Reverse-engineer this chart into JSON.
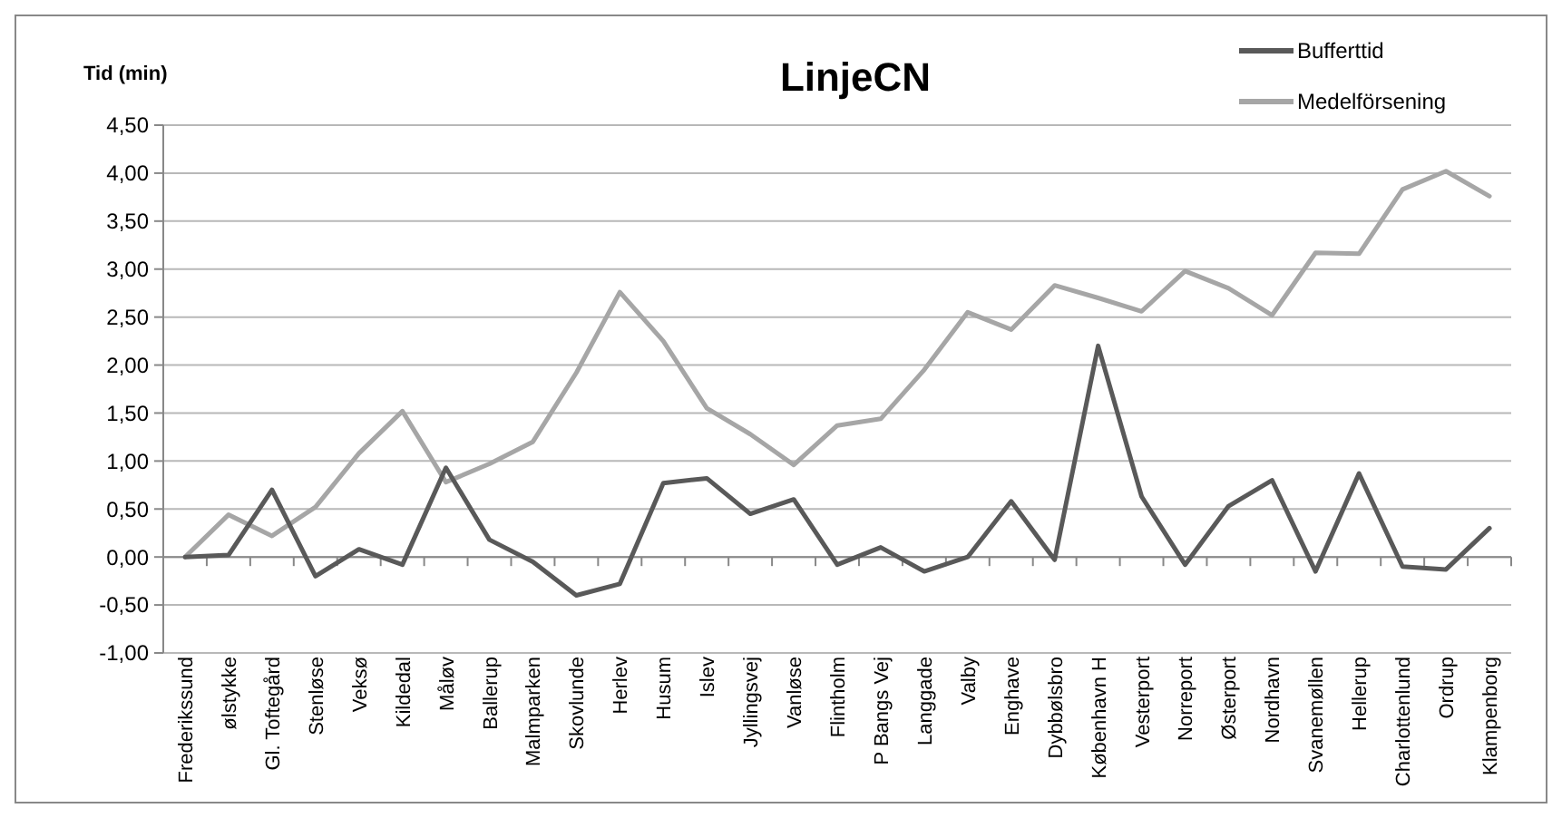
{
  "chart_data": {
    "type": "line",
    "title": "LinjeCN",
    "ylabel": "Tid (min)",
    "categories": [
      "Frederikssund",
      "ølstykke",
      "Gl. Toftegård",
      "Stenløse",
      "Veksø",
      "Kildedal",
      "Måløv",
      "Ballerup",
      "Malmparken",
      "Skovlunde",
      "Herlev",
      "Husum",
      "Islev",
      "Jyllingsvej",
      "Vanløse",
      "Flintholm",
      "P Bangs Vej",
      "Langgade",
      "Valby",
      "Enghave",
      "Dybbølsbro",
      "København H",
      "Vesterport",
      "Norreport",
      "Østerport",
      "Nordhavn",
      "Svanemøllen",
      "Hellerup",
      "Charlottenlund",
      "Ordrup",
      "Klampenborg"
    ],
    "series": [
      {
        "name": "Bufferttid",
        "color": "#595959",
        "values": [
          0,
          0.02,
          0.7,
          -0.2,
          0.08,
          -0.08,
          0.93,
          0.18,
          -0.05,
          -0.4,
          -0.28,
          0.77,
          0.82,
          0.45,
          0.6,
          -0.08,
          0.1,
          -0.15,
          0,
          0.58,
          -0.03,
          2.2,
          0.63,
          -0.08,
          0.53,
          0.8,
          -0.15,
          0.87,
          -0.1,
          -0.13,
          0.3
        ]
      },
      {
        "name": "Medelförsening",
        "color": "#a6a6a6",
        "values": [
          0,
          0.44,
          0.22,
          0.52,
          1.08,
          1.52,
          0.78,
          0.97,
          1.2,
          1.92,
          2.76,
          2.25,
          1.55,
          1.28,
          0.96,
          1.37,
          1.44,
          1.95,
          2.55,
          2.37,
          2.83,
          2.7,
          2.56,
          2.98,
          2.8,
          2.52,
          3.17,
          3.16,
          3.83,
          4.02,
          3.76
        ]
      }
    ],
    "ylim": [
      -1,
      4.5
    ],
    "yticks": [
      {
        "value": -1,
        "label": "-1,00"
      },
      {
        "value": -0.5,
        "label": "-0,50"
      },
      {
        "value": 0,
        "label": "0,00"
      },
      {
        "value": 0.5,
        "label": "0,50"
      },
      {
        "value": 1,
        "label": "1,00"
      },
      {
        "value": 1.5,
        "label": "1,50"
      },
      {
        "value": 2,
        "label": "2,00"
      },
      {
        "value": 2.5,
        "label": "2,50"
      },
      {
        "value": 3,
        "label": "3,00"
      },
      {
        "value": 3.5,
        "label": "3,50"
      },
      {
        "value": 4,
        "label": "4,00"
      },
      {
        "value": 4.5,
        "label": "4,50"
      }
    ],
    "grid": "y",
    "legend": "top right",
    "marker": "none",
    "line_style": "solid"
  }
}
